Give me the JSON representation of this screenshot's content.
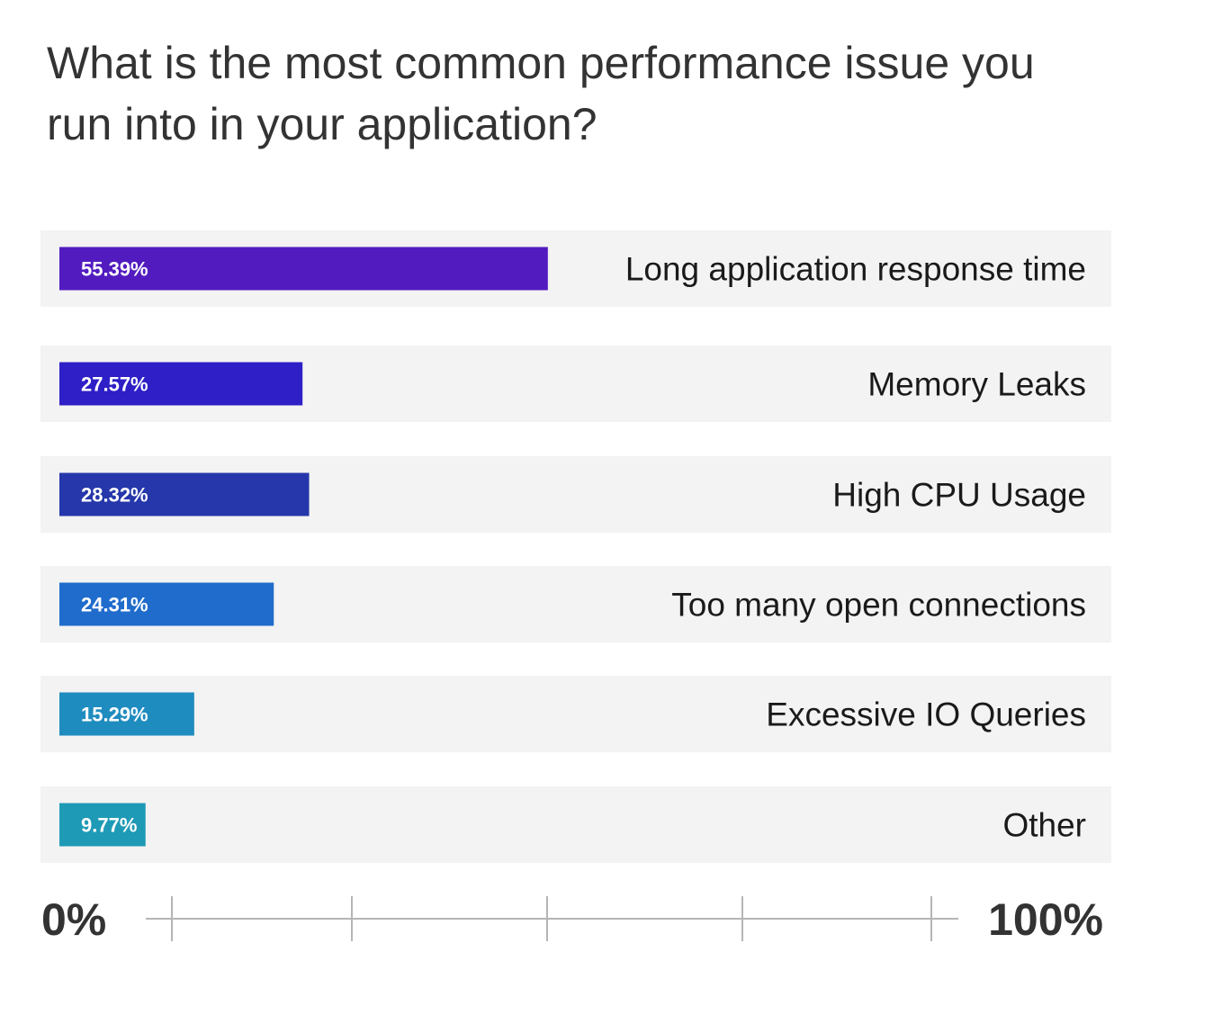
{
  "chart_data": {
    "type": "bar",
    "orientation": "horizontal",
    "title": "What is the most common performance issue you run into in your application?",
    "categories": [
      "Long application response time",
      "Memory Leaks",
      "High CPU Usage",
      "Too many open connections",
      "Excessive IO Queries",
      "Other"
    ],
    "values": [
      55.39,
      27.57,
      28.32,
      24.31,
      15.29,
      9.77
    ],
    "value_labels": [
      "55.39%",
      "27.57%",
      "28.32%",
      "24.31%",
      "15.29%",
      "9.77%"
    ],
    "bar_colors": [
      "#521bc0",
      "#2e1fc6",
      "#2537aa",
      "#206ccc",
      "#1f8cbf",
      "#1f9ab6"
    ],
    "xlim": [
      0,
      100
    ],
    "axis_min_label": "0%",
    "axis_max_label": "100%",
    "grid": false,
    "legend": false
  },
  "colors": {
    "row_background": "#f3f3f3",
    "title_text": "#333333",
    "category_text": "#1a1a1a",
    "axis_line": "#b5b5b5",
    "axis_label": "#333333"
  }
}
